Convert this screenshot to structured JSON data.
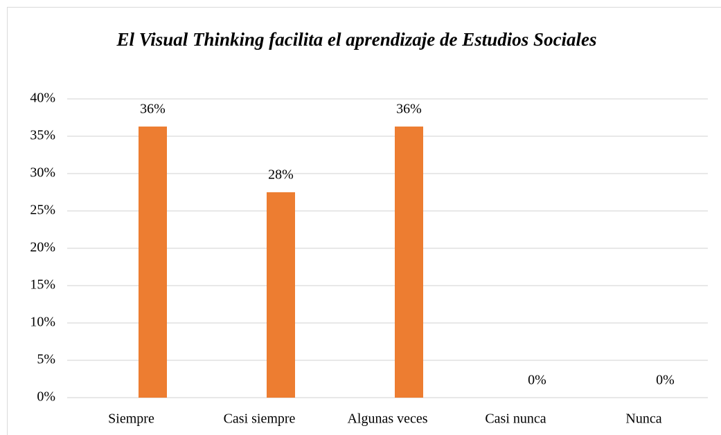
{
  "chart_data": {
    "type": "bar",
    "title": "El Visual Thinking facilita el aprendizaje de Estudios Sociales",
    "categories": [
      "Siempre",
      "Casi siempre",
      "Algunas veces",
      "Casi nunca",
      "Nunca"
    ],
    "values": [
      36.3,
      27.5,
      36.3,
      0,
      0
    ],
    "value_labels": [
      "36%",
      "28%",
      "36%",
      "0%",
      "0%"
    ],
    "color": "#ed7d31",
    "ylim": [
      0,
      40
    ],
    "yticks": [
      {
        "value": 0,
        "label": "0%"
      },
      {
        "value": 5,
        "label": "5%"
      },
      {
        "value": 10,
        "label": "10%"
      },
      {
        "value": 15,
        "label": "15%"
      },
      {
        "value": 20,
        "label": "20%"
      },
      {
        "value": 25,
        "label": "25%"
      },
      {
        "value": 30,
        "label": "30%"
      },
      {
        "value": 35,
        "label": "35%"
      },
      {
        "value": 40,
        "label": "40%"
      }
    ],
    "grid": true
  }
}
